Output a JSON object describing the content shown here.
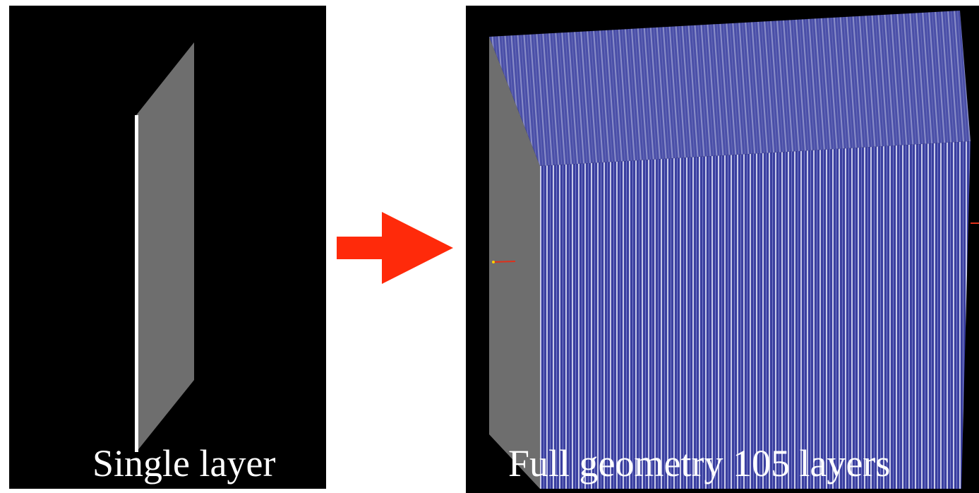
{
  "panels": [
    {
      "caption": "Single layer"
    },
    {
      "caption": "Full geometry 105 layers"
    }
  ]
}
